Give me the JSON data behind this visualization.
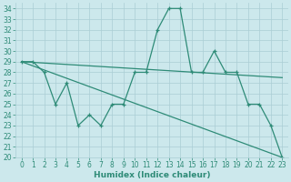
{
  "xlabel": "Humidex (Indice chaleur)",
  "line_main_x": [
    0,
    1,
    2,
    3,
    4,
    5,
    6,
    7,
    8,
    9,
    10,
    11,
    12,
    13,
    14,
    15,
    16,
    17,
    18,
    19,
    20,
    21,
    22,
    23
  ],
  "line_main_y": [
    29,
    29,
    28,
    25,
    27,
    23,
    24,
    23,
    25,
    25,
    28,
    28,
    32,
    34,
    34,
    28,
    28,
    30,
    28,
    28,
    25,
    25,
    23,
    20
  ],
  "trend1_x": [
    0,
    23
  ],
  "trend1_y": [
    29,
    27.5
  ],
  "trend2_x": [
    0,
    23
  ],
  "trend2_y": [
    29,
    20
  ],
  "color": "#2e8b77",
  "bg_color": "#cce8ec",
  "grid_color": "#aacdd4",
  "ylim": [
    20,
    34.5
  ],
  "ylim_bottom": 20,
  "ylim_top": 34.5,
  "yticks": [
    20,
    21,
    22,
    23,
    24,
    25,
    26,
    27,
    28,
    29,
    30,
    31,
    32,
    33,
    34
  ],
  "xticks": [
    0,
    1,
    2,
    3,
    4,
    5,
    6,
    7,
    8,
    9,
    10,
    11,
    12,
    13,
    14,
    15,
    16,
    17,
    18,
    19,
    20,
    21,
    22,
    23
  ],
  "tick_fontsize": 5.5,
  "xlabel_fontsize": 6.5
}
